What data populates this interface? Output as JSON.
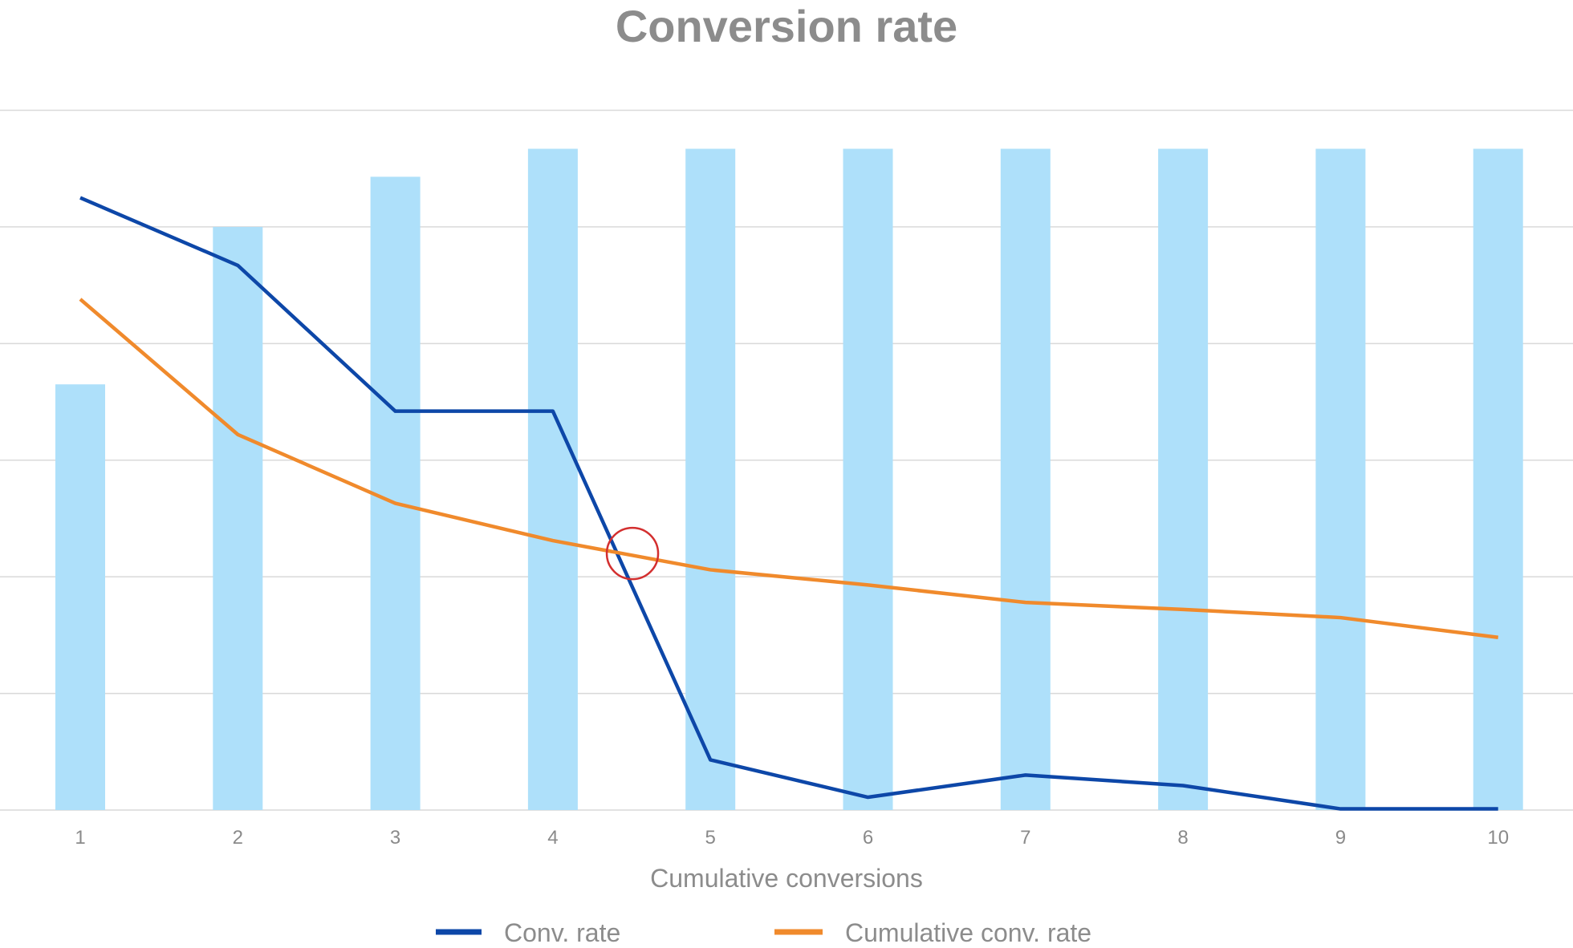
{
  "chart_data": {
    "type": "bar+line",
    "title": "Conversion rate",
    "xlabel": "Cumulative conversions",
    "ylabel": "",
    "categories": [
      "1",
      "2",
      "3",
      "4",
      "5",
      "6",
      "7",
      "8",
      "9",
      "10"
    ],
    "ylim": [
      0,
      6
    ],
    "y_tick_labels_shown": false,
    "grid": true,
    "legend_placement": "bottom",
    "bars": {
      "color": "#aee0fa",
      "values": [
        3.65,
        5.0,
        5.43,
        5.67,
        5.67,
        5.67,
        5.67,
        5.67,
        5.67,
        5.67
      ]
    },
    "series": [
      {
        "name": "Conv. rate",
        "color": "#0d47a8",
        "values": [
          5.25,
          4.67,
          3.42,
          3.42,
          0.43,
          0.11,
          0.3,
          0.21,
          0.01,
          0.01
        ]
      },
      {
        "name": "Cumulative conv. rate",
        "color": "#f08a2c",
        "values": [
          4.38,
          3.22,
          2.63,
          2.31,
          2.06,
          1.93,
          1.78,
          1.72,
          1.65,
          1.48
        ]
      }
    ],
    "annotation": {
      "type": "circle",
      "color": "#d32f2f",
      "x_between": [
        "4",
        "5"
      ],
      "y": 2.2
    }
  }
}
